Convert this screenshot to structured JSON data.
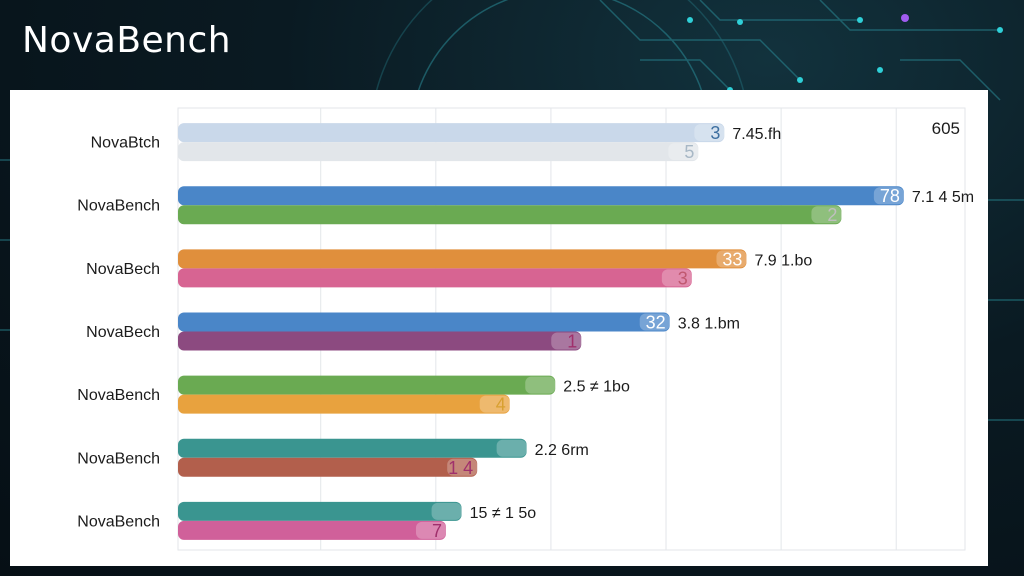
{
  "app": {
    "title": "NovaBench"
  },
  "colors": {
    "background": "#0a1a22",
    "panel": "#ffffff",
    "grid": "#e3e6ea",
    "deco_cyan": "#2fd0d8",
    "deco_purple": "#a05cf0"
  },
  "chart_data": {
    "type": "bar",
    "orientation": "horizontal",
    "top_right_label": "605",
    "grid": true,
    "categories": [
      "NovaBtch",
      "NovaBench",
      "NovaBech",
      "NovaBech",
      "NovaBench",
      "NovaBench",
      "NovaBench"
    ],
    "xlim": [
      0,
      605
    ],
    "series": [
      {
        "color": "#c9d8ea",
        "values": [
          420,
          558,
          437,
          378,
          290,
          268,
          218
        ],
        "colors": [
          "#c9d8ea",
          "#4a86c8",
          "#e08f3c",
          "#4a86c8",
          "#6aaa52",
          "#3a9590",
          "#3a9590"
        ],
        "badges": [
          "3",
          "78",
          "33",
          "32",
          "",
          "",
          ""
        ],
        "badge_colors": [
          "#3d6fa0",
          "#ffffff",
          "#ffffff",
          "#ffffff",
          "#ffffff",
          "#ffffff",
          "#ffffff"
        ]
      },
      {
        "color": "#6aaa52",
        "values": [
          400,
          510,
          395,
          310,
          255,
          230,
          206
        ],
        "colors": [
          "#e2e6ea",
          "#6aaa52",
          "#d76492",
          "#8c4a80",
          "#e8a23e",
          "#b25f4c",
          "#d0609a"
        ],
        "badges": [
          "5",
          "2",
          "3",
          "1",
          "4",
          "1  4",
          "7"
        ],
        "badge_colors": [
          "#a8b8c6",
          "#bfbfbf",
          "#c05870",
          "#a0306c",
          "#d8a030",
          "#a0306c",
          "#a0306c"
        ]
      }
    ],
    "data_labels": [
      "7.45.fh",
      "7.1 4 5m",
      "7.9 1.bo",
      "3.8 1.bm",
      "2.5 ≠ 1bo",
      "2.2 6rm",
      "15 ≠ 1 5o"
    ],
    "data_label_colors": [
      "#1b1b1b",
      "#1b1b1b",
      "#1b1b1b",
      "#1b1b1b",
      "#2e8a3c",
      "#1b1b1b",
      "#1b1b1b"
    ]
  }
}
